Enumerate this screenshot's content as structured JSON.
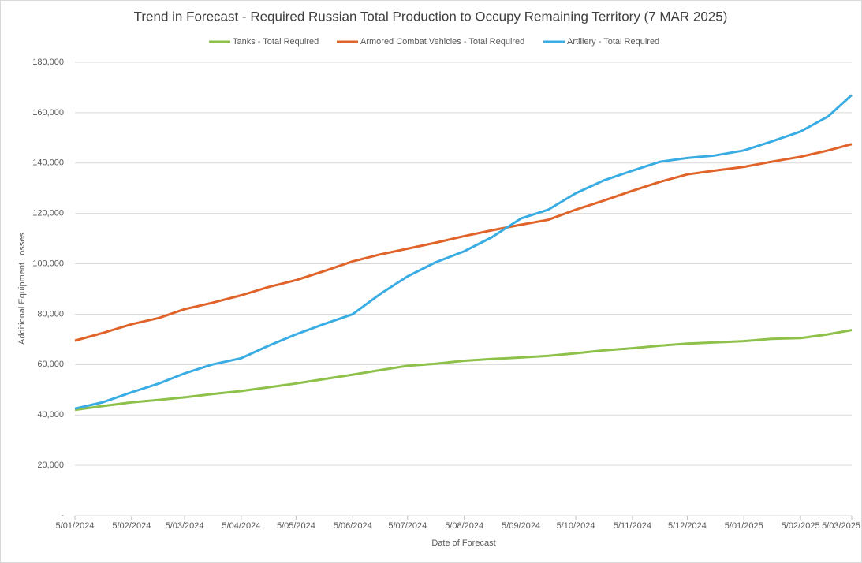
{
  "chart_data": {
    "type": "line",
    "title": "Trend in Forecast - Required Russian Total Production to Occupy Remaining Territory (7 MAR 2025)",
    "xlabel": "Date of Forecast",
    "ylabel": "Additional Equipment Losses",
    "x": [
      "2024-01-05",
      "2024-01-20",
      "2024-02-05",
      "2024-02-20",
      "2024-03-05",
      "2024-03-20",
      "2024-04-05",
      "2024-04-20",
      "2024-05-05",
      "2024-05-20",
      "2024-06-05",
      "2024-06-20",
      "2024-07-05",
      "2024-07-20",
      "2024-08-05",
      "2024-08-20",
      "2024-09-05",
      "2024-09-20",
      "2024-10-05",
      "2024-10-20",
      "2024-11-05",
      "2024-11-20",
      "2024-12-05",
      "2024-12-20",
      "2025-01-05",
      "2025-01-20",
      "2025-02-05",
      "2025-02-20",
      "2025-03-05"
    ],
    "series": [
      {
        "name": "Tanks - Total Required",
        "color": "#8dc14a",
        "values": [
          42000,
          43500,
          45000,
          46000,
          47000,
          48300,
          49500,
          51000,
          52500,
          54200,
          56000,
          57800,
          59500,
          60300,
          61500,
          62200,
          62800,
          63500,
          64500,
          65600,
          66500,
          67500,
          68300,
          68800,
          69300,
          70200,
          70500,
          72000,
          73700
        ]
      },
      {
        "name": "Armored Combat Vehicles - Total Required",
        "color": "#e0642a",
        "values": [
          69500,
          72500,
          76000,
          78500,
          82000,
          84500,
          87500,
          90800,
          93500,
          97000,
          101000,
          103700,
          106000,
          108300,
          111000,
          113300,
          115500,
          117500,
          121500,
          125000,
          129000,
          132500,
          135500,
          137000,
          138500,
          140500,
          142500,
          145000,
          147500
        ]
      },
      {
        "name": "Artillery - Total Required",
        "color": "#39ade3",
        "values": [
          42500,
          45000,
          49000,
          52500,
          56500,
          60000,
          62500,
          67500,
          72000,
          76000,
          80000,
          88000,
          95000,
          100500,
          105000,
          110500,
          118000,
          121500,
          128000,
          133000,
          137000,
          140500,
          142000,
          143000,
          145000,
          148500,
          152500,
          158500,
          167000
        ]
      }
    ],
    "xlim": [
      "2024-01-05",
      "2025-03-05"
    ],
    "xticks": [
      {
        "value": "2024-01-05",
        "label": "5/01/2024"
      },
      {
        "value": "2024-02-05",
        "label": "5/02/2024"
      },
      {
        "value": "2024-03-05",
        "label": "5/03/2024"
      },
      {
        "value": "2024-04-05",
        "label": "5/04/2024"
      },
      {
        "value": "2024-05-05",
        "label": "5/05/2024"
      },
      {
        "value": "2024-06-05",
        "label": "5/06/2024"
      },
      {
        "value": "2024-07-05",
        "label": "5/07/2024"
      },
      {
        "value": "2024-08-05",
        "label": "5/08/2024"
      },
      {
        "value": "2024-09-05",
        "label": "5/09/2024"
      },
      {
        "value": "2024-10-05",
        "label": "5/10/2024"
      },
      {
        "value": "2024-11-05",
        "label": "5/11/2024"
      },
      {
        "value": "2024-12-05",
        "label": "5/12/2024"
      },
      {
        "value": "2025-01-05",
        "label": "5/01/2025"
      },
      {
        "value": "2025-02-05",
        "label": "5/02/2025"
      },
      {
        "value": "2025-03-05",
        "label": "5/03/2025"
      }
    ],
    "ylim": [
      0,
      180000
    ],
    "yticks": [
      {
        "value": 0,
        "label": "-"
      },
      {
        "value": 20000,
        "label": "20,000"
      },
      {
        "value": 40000,
        "label": "40,000"
      },
      {
        "value": 60000,
        "label": "60,000"
      },
      {
        "value": 80000,
        "label": "80,000"
      },
      {
        "value": 100000,
        "label": "100,000"
      },
      {
        "value": 120000,
        "label": "120,000"
      },
      {
        "value": 140000,
        "label": "140,000"
      },
      {
        "value": 160000,
        "label": "160,000"
      },
      {
        "value": 180000,
        "label": "180,000"
      }
    ],
    "grid": true,
    "legend": "top"
  }
}
